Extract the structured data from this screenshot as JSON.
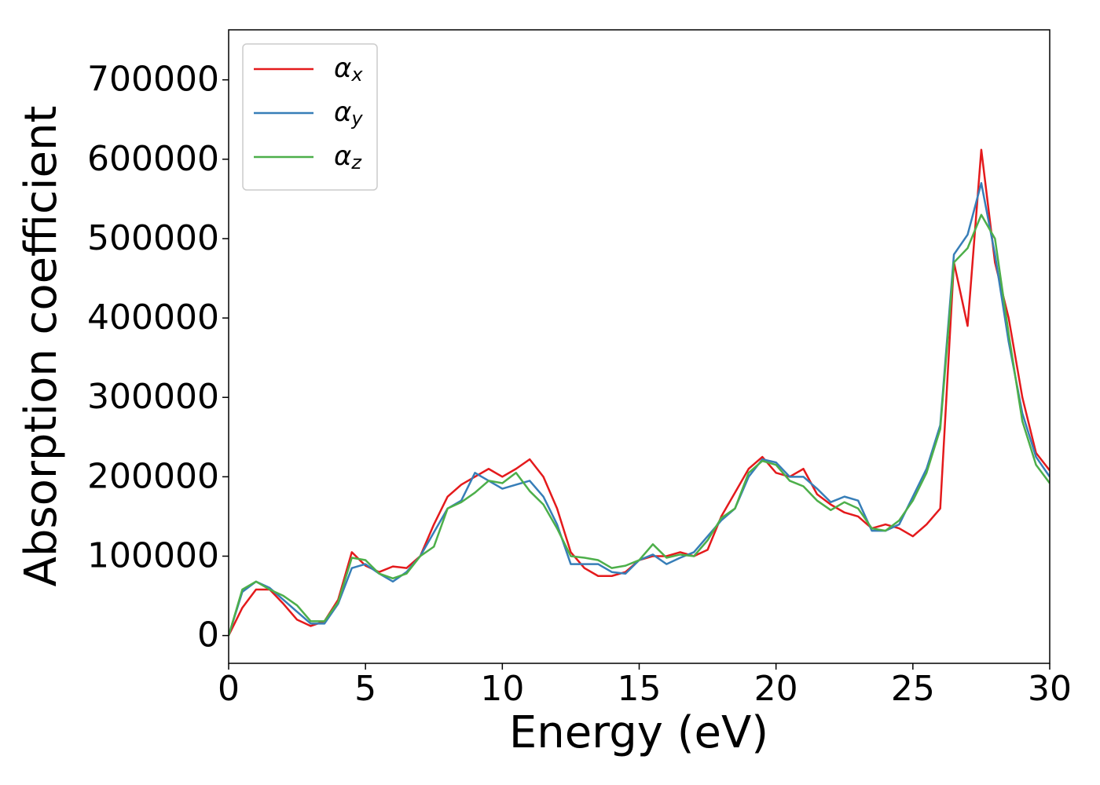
{
  "chart_data": {
    "type": "line",
    "xlabel": "Energy (eV)",
    "ylabel": "Absorption coefficient",
    "x": [
      0,
      0.5,
      1,
      1.5,
      2,
      2.5,
      3,
      3.5,
      4,
      4.5,
      5,
      5.5,
      6,
      6.5,
      7,
      7.5,
      8,
      8.5,
      9,
      9.5,
      10,
      10.5,
      11,
      11.5,
      12,
      12.5,
      13,
      13.5,
      14,
      14.5,
      15,
      15.5,
      16,
      16.5,
      17,
      17.5,
      18,
      18.5,
      19,
      19.5,
      20,
      20.5,
      21,
      21.5,
      22,
      22.5,
      23,
      23.5,
      24,
      24.5,
      25,
      25.5,
      26,
      26.5,
      27,
      27.5,
      28,
      28.5,
      29,
      29.5,
      30
    ],
    "series": [
      {
        "name": "αx",
        "color": "#e41a1c",
        "values": [
          0,
          35000,
          58000,
          58000,
          40000,
          20000,
          12000,
          18000,
          45000,
          105000,
          88000,
          80000,
          87000,
          85000,
          100000,
          140000,
          175000,
          190000,
          200000,
          210000,
          200000,
          210000,
          222000,
          200000,
          160000,
          105000,
          85000,
          75000,
          75000,
          80000,
          95000,
          100000,
          100000,
          105000,
          100000,
          108000,
          150000,
          180000,
          210000,
          225000,
          205000,
          200000,
          210000,
          178000,
          165000,
          155000,
          150000,
          135000,
          140000,
          135000,
          125000,
          140000,
          160000,
          470000,
          390000,
          612000,
          470000,
          400000,
          300000,
          230000,
          208000
        ]
      },
      {
        "name": "αy",
        "color": "#377eb8",
        "values": [
          0,
          55000,
          68000,
          60000,
          45000,
          30000,
          15000,
          15000,
          40000,
          85000,
          90000,
          78000,
          68000,
          80000,
          100000,
          130000,
          160000,
          170000,
          205000,
          195000,
          185000,
          190000,
          195000,
          175000,
          140000,
          90000,
          90000,
          90000,
          80000,
          78000,
          95000,
          102000,
          90000,
          98000,
          105000,
          125000,
          145000,
          160000,
          200000,
          222000,
          218000,
          200000,
          200000,
          185000,
          168000,
          175000,
          170000,
          132000,
          132000,
          140000,
          175000,
          210000,
          265000,
          480000,
          505000,
          570000,
          480000,
          370000,
          280000,
          225000,
          200000
        ]
      },
      {
        "name": "αz",
        "color": "#4daf4a",
        "values": [
          0,
          58000,
          68000,
          58000,
          50000,
          38000,
          18000,
          18000,
          42000,
          98000,
          95000,
          78000,
          72000,
          78000,
          100000,
          112000,
          160000,
          168000,
          180000,
          195000,
          192000,
          205000,
          182000,
          165000,
          135000,
          100000,
          98000,
          95000,
          85000,
          88000,
          95000,
          115000,
          98000,
          102000,
          100000,
          120000,
          148000,
          160000,
          205000,
          220000,
          215000,
          195000,
          188000,
          170000,
          158000,
          168000,
          160000,
          135000,
          132000,
          145000,
          170000,
          205000,
          260000,
          470000,
          488000,
          530000,
          500000,
          380000,
          270000,
          215000,
          192000
        ]
      }
    ],
    "xlim": [
      0,
      30
    ],
    "xticks": [
      0,
      5,
      10,
      15,
      20,
      25,
      30
    ],
    "ylim": [
      -35000,
      763000
    ],
    "yticks": [
      0,
      100000,
      200000,
      300000,
      400000,
      500000,
      600000,
      700000
    ],
    "legend": "upper left",
    "grid": false
  }
}
